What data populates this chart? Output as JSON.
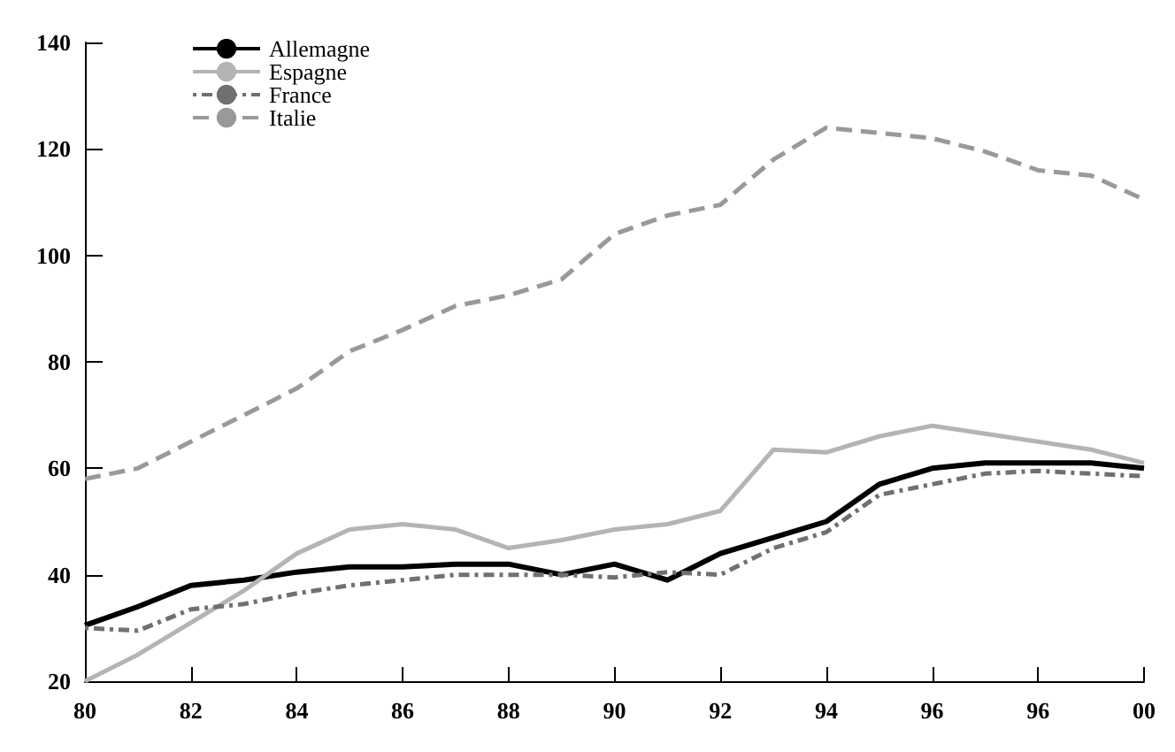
{
  "chart_data": {
    "type": "line",
    "categories": [
      "80",
      null,
      "82",
      null,
      "84",
      null,
      "86",
      null,
      "88",
      null,
      "90",
      null,
      "92",
      null,
      "94",
      null,
      "96",
      null,
      "96",
      null,
      "00"
    ],
    "series": [
      {
        "name": "Allemagne",
        "color": "#000000",
        "line_style": "solid",
        "values": [
          30.5,
          34,
          38,
          39,
          40.5,
          41.5,
          41.5,
          42,
          42,
          40,
          42,
          39,
          44,
          47,
          50,
          57,
          60,
          61,
          61,
          61,
          60
        ]
      },
      {
        "name": "Espagne",
        "color": "#b4b4b4",
        "line_style": "solid",
        "values": [
          20,
          25,
          31,
          37,
          44,
          48.5,
          49.5,
          48.5,
          45,
          46.5,
          48.5,
          49.5,
          52,
          63.5,
          63,
          66,
          68,
          66.5,
          65,
          63.5,
          61
        ]
      },
      {
        "name": "France",
        "color": "#707070",
        "line_style": "dotted",
        "values": [
          30,
          29.5,
          33.5,
          34.5,
          36.5,
          38,
          39,
          40,
          40,
          40,
          39.5,
          40.5,
          40,
          45,
          48,
          55,
          57,
          59,
          59.5,
          59,
          58.5
        ]
      },
      {
        "name": "Italie",
        "color": "#999999",
        "line_style": "dashed",
        "values": [
          58,
          60,
          65,
          70,
          75,
          82,
          86,
          90.5,
          92.5,
          95.5,
          104,
          107.5,
          109.5,
          118,
          124,
          123,
          122,
          119.5,
          116,
          115,
          110.5
        ]
      }
    ],
    "ylim": [
      20,
      140
    ],
    "yticks": [
      20,
      40,
      60,
      80,
      100,
      120,
      140
    ],
    "grid": false,
    "legend": "top left",
    "marker": "none"
  }
}
